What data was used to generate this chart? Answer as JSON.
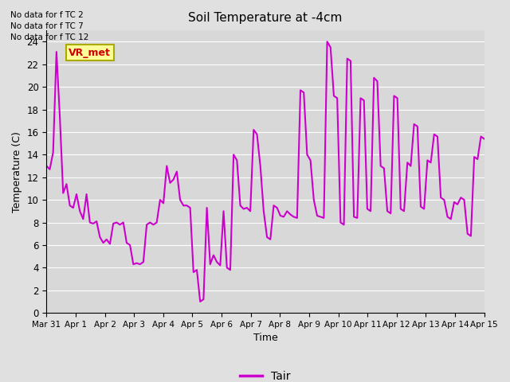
{
  "title": "Soil Temperature at -4cm",
  "xlabel": "Time",
  "ylabel": "Temperature (C)",
  "ylim": [
    0,
    25
  ],
  "yticks": [
    0,
    2,
    4,
    6,
    8,
    10,
    12,
    14,
    16,
    18,
    20,
    22,
    24
  ],
  "line_color": "#cc00cc",
  "line_width": 1.5,
  "background_color": "#e0e0e0",
  "plot_bg_color": "#d8d8d8",
  "legend_label": "Tair",
  "legend_line_color": "#cc00cc",
  "annotation_lines": [
    "No data for f TC 2",
    "No data for f TC 7",
    "No data for f TC 12"
  ],
  "annotation_box_label": "VR_met",
  "annotation_box_facecolor": "#ffff99",
  "annotation_box_edgecolor": "#aaaa00",
  "annotation_text_color": "#cc0000",
  "x_tick_labels": [
    "Mar 31",
    "Apr 1",
    "Apr 2",
    "Apr 3",
    "Apr 4",
    "Apr 5",
    "Apr 6",
    "Apr 7",
    "Apr 8",
    "Apr 9",
    "Apr 10",
    "Apr 11",
    "Apr 12",
    "Apr 13",
    "Apr 14",
    "Apr 15"
  ],
  "y_values": [
    13.0,
    12.7,
    14.2,
    23.1,
    17.4,
    10.6,
    11.4,
    9.5,
    9.3,
    10.5,
    9.0,
    8.3,
    10.5,
    8.0,
    7.9,
    8.1,
    6.7,
    6.2,
    6.5,
    6.1,
    7.9,
    8.0,
    7.8,
    8.0,
    6.2,
    6.0,
    4.3,
    4.4,
    4.3,
    4.5,
    7.8,
    8.0,
    7.8,
    8.0,
    10.0,
    9.7,
    13.0,
    11.5,
    11.8,
    12.5,
    10.0,
    9.5,
    9.5,
    9.3,
    3.6,
    3.8,
    1.0,
    1.2,
    9.3,
    4.3,
    5.1,
    4.5,
    4.2,
    9.0,
    4.0,
    3.8,
    14.0,
    13.5,
    9.5,
    9.2,
    9.3,
    9.0,
    16.2,
    15.8,
    13.0,
    9.0,
    6.7,
    6.5,
    9.5,
    9.3,
    8.6,
    8.5,
    9.0,
    8.7,
    8.5,
    8.4,
    19.7,
    19.5,
    14.0,
    13.5,
    10.0,
    8.6,
    8.5,
    8.4,
    24.0,
    23.5,
    19.2,
    19.0,
    8.0,
    7.8,
    22.5,
    22.3,
    8.5,
    8.4,
    19.0,
    18.8,
    9.2,
    9.0,
    20.8,
    20.5,
    13.0,
    12.8,
    9.0,
    8.8,
    19.2,
    19.0,
    9.2,
    9.0,
    13.3,
    13.0,
    16.7,
    16.5,
    9.4,
    9.2,
    13.5,
    13.3,
    15.8,
    15.6,
    10.2,
    10.0,
    8.5,
    8.3,
    9.8,
    9.6,
    10.2,
    10.0,
    7.0,
    6.8,
    13.8,
    13.6,
    15.6,
    15.4
  ]
}
